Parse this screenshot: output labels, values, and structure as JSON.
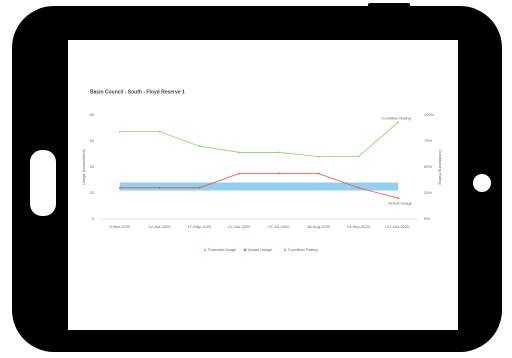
{
  "chart_data": {
    "type": "line",
    "title": "Basin Council - South - Floyd Reserve 1",
    "y_label": "Usage (hours/week)",
    "y2_label": "Conditioning Rating",
    "categories": [
      "5-Mar-2020",
      "12-Apr-2020",
      "17-May-2020",
      "21-Jun-2020",
      "27-Jul-2020",
      "18-Aug-2020",
      "19-Sep-2020",
      "21-Oct-2020"
    ],
    "series": [
      {
        "name": "Potential Usage",
        "color": "#7fc8ec",
        "values": [
          25,
          25,
          25,
          25,
          25,
          25,
          25,
          25
        ]
      },
      {
        "name": "Actual Usage",
        "color": "#e8553a",
        "values": [
          24,
          24,
          24,
          35,
          35,
          35,
          24,
          16
        ]
      },
      {
        "name": "Condition Rating",
        "color": "#8fd06a",
        "axis": "y2",
        "values": [
          84,
          84,
          70,
          64,
          64,
          60,
          60,
          93
        ]
      }
    ],
    "annotations": [
      "Condition Rating",
      "Actual Usage"
    ],
    "ylim": [
      0,
      80
    ],
    "yticks": [
      0,
      20,
      40,
      60,
      80
    ],
    "y2lim": [
      0,
      100
    ],
    "y2ticks": [
      {
        "value": 0,
        "label": "0%"
      },
      {
        "value": 25,
        "label": "25%"
      },
      {
        "value": 50,
        "label": "50%"
      },
      {
        "value": 75,
        "label": "75%"
      },
      {
        "value": 100,
        "label": "100%"
      }
    ],
    "grid": false,
    "legend": "bottom"
  }
}
